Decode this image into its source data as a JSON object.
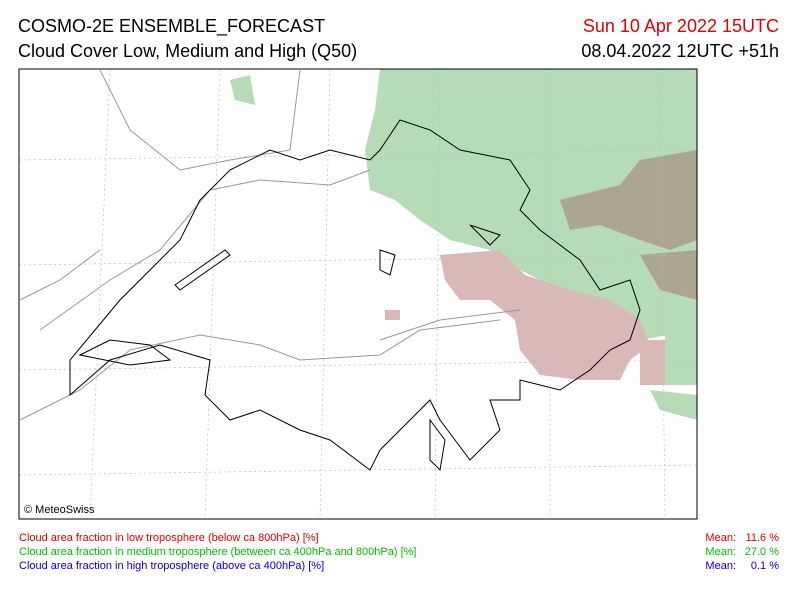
{
  "header": {
    "title": "COSMO-2E ENSEMBLE_FORECAST",
    "subtitle": "Cloud Cover Low, Medium and High (Q50)",
    "valid_time": "Sun 10 Apr 2022 15UTC",
    "run_time": "08.04.2022 12UTC +51h"
  },
  "map": {
    "copyright": "© MeteoSwiss"
  },
  "legend": [
    {
      "label": "Cloud area fraction in low troposphere (below ca 800hPa) [%]",
      "mean_label": "Mean:",
      "mean": "11.6 %"
    },
    {
      "label": "Cloud area fraction in medium troposphere (between ca 400hPa and 800hPa) [%]",
      "mean_label": "Mean:",
      "mean": "27.0 %"
    },
    {
      "label": "Cloud area fraction in high troposphere (above ca 400hPa) [%]",
      "mean_label": "Mean:",
      "mean": "0.1 %"
    }
  ]
}
